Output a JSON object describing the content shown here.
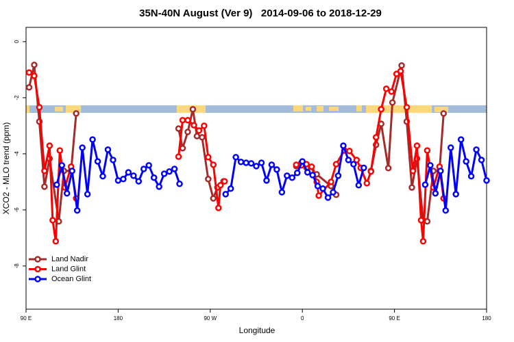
{
  "chart_data": {
    "type": "line",
    "title": "35N-40N August (Ver 9)   2014-09-06 to 2018-12-29",
    "xlabel": "Longitude",
    "ylabel": "XCO2 - MLO trend (ppm)",
    "xlim": [
      90,
      540
    ],
    "ylim": [
      -9.54,
      0.51
    ],
    "xticks": [
      {
        "value": 90,
        "label": "90 E"
      },
      {
        "value": 180,
        "label": "180"
      },
      {
        "value": 270,
        "label": "90 W"
      },
      {
        "value": 360,
        "label": "0"
      },
      {
        "value": 450,
        "label": "90 E"
      },
      {
        "value": 540,
        "label": "180"
      }
    ],
    "yticks": [
      -8,
      -6,
      -4,
      -2,
      0
    ],
    "legend": "bottomleft",
    "series": [
      {
        "name": "Land Nadir",
        "color": "#a52a2a",
        "x": [
          93,
          98,
          103,
          108,
          113,
          122,
          127,
          134,
          139,
          null,
          239,
          243,
          248,
          253,
          257,
          262,
          268,
          273,
          277,
          283,
          null,
          354,
          359,
          364,
          369,
          374,
          388,
          393,
          null,
          427,
          432,
          437,
          444,
          448,
          457,
          462,
          467,
          472,
          478,
          482,
          488,
          494,
          498
        ],
        "values": [
          -1.63,
          -0.83,
          -2.85,
          -5.17,
          -4.17,
          -6.41,
          -4.61,
          -4.61,
          -2.56,
          null,
          -3.1,
          -3.8,
          -3.22,
          -2.41,
          -3.37,
          -3.41,
          -4.9,
          -5.59,
          -5.2,
          -4.98,
          null,
          -4.44,
          -4.32,
          -4.49,
          -4.61,
          -4.73,
          -5.15,
          -5.46,
          null,
          -4.61,
          -3.68,
          -2.93,
          -4.51,
          -2.17,
          -0.85,
          -2.85,
          -5.2,
          -4.17,
          -6.37,
          -6.41,
          -4.61,
          -4.61,
          -2.56
        ]
      },
      {
        "name": "Land Glint",
        "color": "#ff0000",
        "x": [
          93,
          98,
          103,
          108,
          113,
          116,
          119,
          123,
          128,
          134,
          139,
          null,
          239,
          243,
          248,
          254,
          259,
          264,
          268,
          273,
          278,
          280,
          284,
          null,
          354,
          359,
          364,
          369,
          374,
          376,
          388,
          393,
          401,
          406,
          413,
          417,
          423,
          427,
          432,
          437,
          442,
          447,
          452,
          456,
          462,
          468,
          472,
          476,
          478,
          482,
          488,
          494,
          498
        ],
        "values": [
          -1.1,
          -1.22,
          -2.34,
          -4.61,
          -3.71,
          -6.37,
          -7.12,
          -3.88,
          -5.2,
          -4.46,
          -5.59,
          null,
          -4.1,
          -2.8,
          -2.8,
          -2.98,
          -3.17,
          -3,
          -4.12,
          -4.39,
          -5.93,
          -5.12,
          -4.98,
          null,
          -4.39,
          -4.41,
          -4.37,
          -4.46,
          -5,
          -5.49,
          -5,
          -4.37,
          -3.88,
          -3.9,
          -4.22,
          -4.5,
          -5.05,
          -4.63,
          -3.41,
          -2.41,
          -1.68,
          -1.78,
          -1.15,
          -1.05,
          -2.34,
          -4.61,
          -3.71,
          -6.37,
          -7.12,
          -3.88,
          -5.2,
          -4.46,
          -5.59
        ]
      },
      {
        "name": "Ocean Glint",
        "color": "#0000ff",
        "x": [
          120,
          125,
          130,
          135,
          140,
          145,
          150,
          155,
          160,
          165,
          170,
          175,
          180,
          185,
          190,
          195,
          200,
          205,
          210,
          215,
          220,
          225,
          230,
          235,
          240,
          null,
          285,
          290,
          295,
          300,
          305,
          310,
          315,
          320,
          325,
          330,
          335,
          340,
          345,
          350,
          355,
          360,
          365,
          370,
          375,
          380,
          385,
          390,
          395,
          400,
          405,
          410,
          415,
          420,
          null,
          480,
          485,
          490,
          495,
          500,
          505,
          510,
          515,
          520,
          525,
          530,
          535,
          540
        ],
        "values": [
          -5.1,
          -4.41,
          -5.41,
          -4.61,
          -6.02,
          -3.78,
          -5.44,
          -3.49,
          -4.27,
          -4.8,
          -3.85,
          -4.22,
          -4.95,
          -4.9,
          -4.66,
          -4.78,
          -4.98,
          -4.54,
          -4.41,
          -4.85,
          -5.17,
          -4.71,
          -4.63,
          -4.54,
          -5.07,
          null,
          -5.44,
          -5.24,
          -4.12,
          -4.29,
          -4.32,
          -4.34,
          -4.44,
          -4.32,
          -4.95,
          -4.39,
          -4.56,
          -5.37,
          -4.78,
          -4.85,
          -4.68,
          -4.27,
          -4.66,
          -4.76,
          -5.15,
          -5.24,
          -5.56,
          -5.37,
          -4.78,
          -3.71,
          -4.22,
          -4.37,
          -5.12,
          -4.5,
          null,
          -5.1,
          -4.41,
          -5.41,
          -4.61,
          -6.02,
          -3.78,
          -5.44,
          -3.49,
          -4.27,
          -4.8,
          -3.85,
          -4.22,
          -4.95
        ]
      }
    ]
  }
}
